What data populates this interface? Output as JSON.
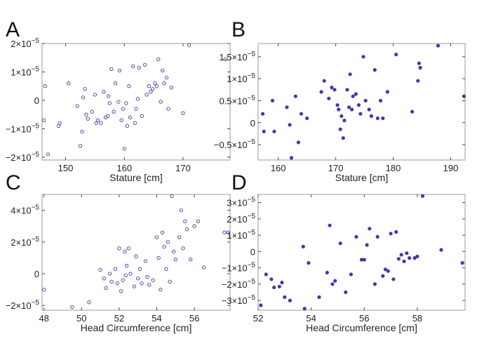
{
  "colors": {
    "marker": "#3b3ba8",
    "frame": "#999999",
    "text": "#222222"
  },
  "chart_data": [
    {
      "type": "scatter",
      "panel": "A",
      "marker": "open",
      "xlabel": "Stature [cm]",
      "ylabel": "",
      "xlim": [
        146,
        178
      ],
      "ylim": [
        -2.1e-05,
        2e-05
      ],
      "xticks": [
        150,
        160,
        170
      ],
      "yticks": [
        {
          "value": 2e-05,
          "mant": "2",
          "exp": "−5"
        },
        {
          "value": 1e-05,
          "mant": "1",
          "exp": "−5"
        },
        {
          "value": 0,
          "mant": "0",
          "exp": ""
        },
        {
          "value": -1e-05,
          "mant": "−1",
          "exp": "−5"
        },
        {
          "value": -2e-05,
          "mant": "−2",
          "exp": "−5"
        }
      ],
      "points": [
        [
          146.3,
          -7e-06
        ],
        [
          146.5,
          5e-06
        ],
        [
          147.0,
          -1.9e-05
        ],
        [
          148.8,
          -9e-06
        ],
        [
          149.0,
          -8e-06
        ],
        [
          150.5,
          6e-06
        ],
        [
          152.0,
          -2e-06
        ],
        [
          152.5,
          -1.6e-05
        ],
        [
          152.8,
          -1.1e-05
        ],
        [
          153.0,
          1e-06
        ],
        [
          153.3,
          4e-06
        ],
        [
          153.5,
          -5e-06
        ],
        [
          153.8,
          -6.5e-06
        ],
        [
          154.5,
          -4e-06
        ],
        [
          155.0,
          2e-06
        ],
        [
          155.2,
          -8e-06
        ],
        [
          155.5,
          -7e-06
        ],
        [
          156.0,
          -8e-06
        ],
        [
          156.5,
          3e-06
        ],
        [
          156.8,
          -6e-06
        ],
        [
          157.2,
          -5.5e-06
        ],
        [
          157.3,
          1.5e-06
        ],
        [
          157.5,
          -1e-06
        ],
        [
          157.8,
          1.1e-05
        ],
        [
          158.2,
          -4e-06
        ],
        [
          158.5,
          6e-06
        ],
        [
          159.0,
          -5e-07
        ],
        [
          159.2,
          1.05e-05
        ],
        [
          159.5,
          -7e-06
        ],
        [
          159.8,
          -3e-06
        ],
        [
          160.0,
          -1.7e-05
        ],
        [
          160.3,
          -1e-06
        ],
        [
          160.5,
          -9e-06
        ],
        [
          160.8,
          5e-06
        ],
        [
          161.0,
          -6e-06
        ],
        [
          161.5,
          1.2e-05
        ],
        [
          161.8,
          -8e-06
        ],
        [
          162.0,
          -3e-06
        ],
        [
          162.3,
          5e-07
        ],
        [
          162.5,
          1.15e-05
        ],
        [
          163.0,
          -5.5e-06
        ],
        [
          163.5,
          1.25e-05
        ],
        [
          163.8,
          2e-06
        ],
        [
          164.2,
          5e-06
        ],
        [
          164.5,
          3e-06
        ],
        [
          164.8,
          4e-06
        ],
        [
          165.2,
          6e-06
        ],
        [
          165.5,
          5e-06
        ],
        [
          165.8,
          1.45e-05
        ],
        [
          166.2,
          -5e-07
        ],
        [
          166.5,
          1.05e-05
        ],
        [
          166.8,
          6e-06
        ],
        [
          167.2,
          8e-06
        ],
        [
          167.5,
          -3e-06
        ],
        [
          168.0,
          4.5e-06
        ],
        [
          170.0,
          -4.5e-06
        ],
        [
          171.0,
          1.95e-05
        ],
        [
          177.2,
          1.45e-05
        ]
      ]
    },
    {
      "type": "scatter",
      "panel": "B",
      "marker": "filled",
      "xlabel": "Stature [cm]",
      "ylabel": "",
      "xlim": [
        156.5,
        192.5
      ],
      "ylim": [
        -8.5e-06,
        1.8e-05
      ],
      "xticks": [
        160,
        170,
        180,
        190
      ],
      "yticks": [
        {
          "value": 1.5e-05,
          "mant": "1.5",
          "exp": "−5"
        },
        {
          "value": 1e-05,
          "mant": "1",
          "exp": "−5"
        },
        {
          "value": 5e-06,
          "mant": "0.5",
          "exp": "−5"
        },
        {
          "value": 0,
          "mant": "0",
          "exp": ""
        },
        {
          "value": -5e-06,
          "mant": "−0.5",
          "exp": "−5"
        }
      ],
      "points": [
        [
          157.3,
          2e-06
        ],
        [
          157.5,
          -2e-06
        ],
        [
          159.0,
          5e-06
        ],
        [
          159.3,
          -2e-06
        ],
        [
          161.5,
          3.5e-06
        ],
        [
          162.0,
          -5e-07
        ],
        [
          162.3,
          -8e-06
        ],
        [
          163.0,
          6e-06
        ],
        [
          163.5,
          -4.5e-06
        ],
        [
          164.0,
          2e-06
        ],
        [
          165.0,
          1e-06
        ],
        [
          167.5,
          7e-06
        ],
        [
          168.0,
          9.5e-06
        ],
        [
          168.8,
          5.5e-06
        ],
        [
          169.3,
          8e-06
        ],
        [
          169.8,
          7.5e-06
        ],
        [
          170.3,
          4e-06
        ],
        [
          170.5,
          3e-06
        ],
        [
          170.8,
          -1.5e-06
        ],
        [
          171.0,
          1.5e-06
        ],
        [
          171.3,
          -3.5e-06
        ],
        [
          171.5,
          5e-07
        ],
        [
          172.0,
          7.5e-06
        ],
        [
          172.3,
          3.5e-06
        ],
        [
          172.5,
          1.1e-05
        ],
        [
          172.8,
          3e-06
        ],
        [
          173.0,
          6e-06
        ],
        [
          173.5,
          6.5e-06
        ],
        [
          174.0,
          4e-06
        ],
        [
          174.3,
          2e-06
        ],
        [
          174.8,
          1.5e-05
        ],
        [
          175.2,
          5e-06
        ],
        [
          175.8,
          3e-06
        ],
        [
          176.2,
          1.5e-06
        ],
        [
          176.8,
          1.2e-05
        ],
        [
          177.3,
          1e-06
        ],
        [
          177.8,
          5e-06
        ],
        [
          178.2,
          1e-06
        ],
        [
          179.0,
          7e-06
        ],
        [
          180.5,
          1.55e-05
        ],
        [
          183.3,
          2.5e-06
        ],
        [
          184.3,
          9.5e-06
        ],
        [
          184.5,
          1.35e-05
        ],
        [
          184.7,
          1.25e-05
        ],
        [
          187.8,
          1.75e-05
        ],
        [
          192.3,
          6e-06
        ]
      ]
    },
    {
      "type": "scatter",
      "panel": "C",
      "marker": "open",
      "xlabel": "Head Circumference [cm]",
      "ylabel": "",
      "xlim": [
        47.9,
        57.9
      ],
      "ylim": [
        -2.3e-05,
        5e-05
      ],
      "xticks": [
        48,
        50,
        52,
        54,
        56
      ],
      "yticks": [
        {
          "value": 4e-05,
          "mant": "4",
          "exp": "−5"
        },
        {
          "value": 2e-05,
          "mant": "2",
          "exp": "−5"
        },
        {
          "value": 0,
          "mant": "0",
          "exp": ""
        },
        {
          "value": -2e-05,
          "mant": "−2",
          "exp": "−5"
        }
      ],
      "points": [
        [
          48.0,
          -1e-05
        ],
        [
          49.5,
          -2.1e-05
        ],
        [
          50.4,
          -1.8e-05
        ],
        [
          51.0,
          2.5e-06
        ],
        [
          51.2,
          -3e-06
        ],
        [
          51.3,
          -9e-06
        ],
        [
          51.5,
          0.0
        ],
        [
          51.6,
          -5e-06
        ],
        [
          51.8,
          3e-06
        ],
        [
          51.9,
          -6e-06
        ],
        [
          52.0,
          1.6e-05
        ],
        [
          52.1,
          -1.1e-05
        ],
        [
          52.2,
          -4e-06
        ],
        [
          52.3,
          1.4e-05
        ],
        [
          52.35,
          -1e-06
        ],
        [
          52.4,
          5e-06
        ],
        [
          52.5,
          1.6e-05
        ],
        [
          52.6,
          0.0
        ],
        [
          52.8,
          -8e-06
        ],
        [
          52.9,
          1.1e-05
        ],
        [
          53.0,
          -3e-06
        ],
        [
          53.1,
          3e-06
        ],
        [
          53.2,
          -6e-06
        ],
        [
          53.4,
          8e-06
        ],
        [
          53.5,
          -2e-06
        ],
        [
          53.6,
          -7e-06
        ],
        [
          53.8,
          -4e-06
        ],
        [
          54.0,
          2.3e-05
        ],
        [
          54.1,
          1e-05
        ],
        [
          54.2,
          -1e-05
        ],
        [
          54.3,
          2.6e-05
        ],
        [
          54.4,
          1.7e-05
        ],
        [
          54.5,
          3e-06
        ],
        [
          54.6,
          2e-05
        ],
        [
          54.7,
          -5e-06
        ],
        [
          54.8,
          4.9e-05
        ],
        [
          54.9,
          1.4e-05
        ],
        [
          55.0,
          9e-06
        ],
        [
          55.2,
          2.3e-05
        ],
        [
          55.3,
          4e-05
        ],
        [
          55.4,
          1.6e-05
        ],
        [
          55.5,
          3.3e-05
        ],
        [
          55.6,
          2.8e-05
        ],
        [
          55.8,
          9e-06
        ],
        [
          56.0,
          3e-05
        ],
        [
          56.2,
          3.3e-05
        ],
        [
          56.5,
          4e-06
        ],
        [
          57.6,
          2.6e-05
        ],
        [
          57.8,
          2.6e-05
        ]
      ]
    },
    {
      "type": "scatter",
      "panel": "D",
      "marker": "filled",
      "xlabel": "Head Circumference [cm]",
      "ylabel": "",
      "xlim": [
        52.0,
        59.8
      ],
      "ylim": [
        -3.6e-05,
        3.5e-05
      ],
      "xticks": [
        52,
        54,
        56,
        58
      ],
      "yticks": [
        {
          "value": 3e-05,
          "mant": "3",
          "exp": "−5"
        },
        {
          "value": 2e-05,
          "mant": "2",
          "exp": "−5"
        },
        {
          "value": 1e-05,
          "mant": "1",
          "exp": "−5"
        },
        {
          "value": 0,
          "mant": "0",
          "exp": ""
        },
        {
          "value": -1e-05,
          "mant": "−1",
          "exp": "−5"
        },
        {
          "value": -2e-05,
          "mant": "−2",
          "exp": "−5"
        },
        {
          "value": -3e-05,
          "mant": "−3",
          "exp": "−5"
        }
      ],
      "points": [
        [
          52.1,
          -3.3e-05
        ],
        [
          52.3,
          -1.4e-05
        ],
        [
          52.5,
          -1.7e-05
        ],
        [
          52.6,
          -2.2e-05
        ],
        [
          52.8,
          -2.15e-05
        ],
        [
          52.9,
          -1.9e-05
        ],
        [
          53.0,
          -2.8e-05
        ],
        [
          53.2,
          -3e-05
        ],
        [
          53.7,
          3e-06
        ],
        [
          53.75,
          -3.5e-05
        ],
        [
          53.9,
          -7e-06
        ],
        [
          54.3,
          -2.8e-05
        ],
        [
          54.6,
          -1.3e-05
        ],
        [
          54.7,
          1.6e-05
        ],
        [
          54.8,
          -2e-05
        ],
        [
          54.9,
          -1.8e-05
        ],
        [
          55.1,
          5e-06
        ],
        [
          55.3,
          -2.5e-05
        ],
        [
          55.5,
          -1.4e-05
        ],
        [
          55.7,
          9e-06
        ],
        [
          55.9,
          -5e-06
        ],
        [
          56.0,
          -5e-06
        ],
        [
          56.1,
          4e-06
        ],
        [
          56.2,
          1.4e-05
        ],
        [
          56.4,
          -2e-05
        ],
        [
          56.5,
          9e-06
        ],
        [
          56.7,
          -1.5e-05
        ],
        [
          56.8,
          -1.1e-05
        ],
        [
          56.9,
          -1.2e-05
        ],
        [
          57.0,
          1.1e-05
        ],
        [
          57.1,
          -1.7e-05
        ],
        [
          57.2,
          1.2e-05
        ],
        [
          57.3,
          -4.5e-06
        ],
        [
          57.4,
          -2e-06
        ],
        [
          57.5,
          -6e-06
        ],
        [
          57.6,
          -1e-06
        ],
        [
          57.7,
          -4e-06
        ],
        [
          57.9,
          -4e-06
        ],
        [
          58.0,
          -3e-06
        ],
        [
          58.2,
          3.4e-05
        ],
        [
          58.9,
          1e-06
        ],
        [
          59.7,
          -7e-06
        ]
      ]
    }
  ]
}
